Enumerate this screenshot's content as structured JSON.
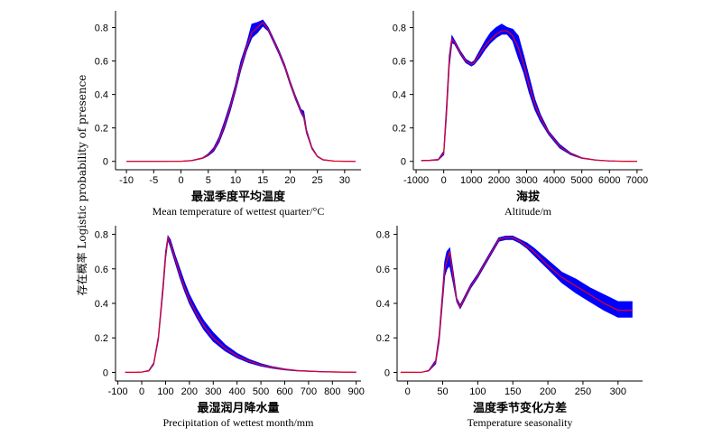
{
  "figure": {
    "ylabel": "存在概率 Logistic probability of presence",
    "colors": {
      "band": "#0000ff",
      "mean": "#e8001c",
      "axis": "#000000"
    }
  },
  "chart_data": [
    {
      "type": "line",
      "xlabel_cn": "最湿季度平均温度",
      "xlabel_en": "Mean temperature of wettest quarter/°C",
      "xlim": [
        -12,
        33
      ],
      "ylim": [
        -0.05,
        0.9
      ],
      "xticks": [
        -10,
        -5,
        0,
        5,
        10,
        15,
        20,
        25,
        30
      ],
      "yticks": [
        0,
        0.2,
        0.4,
        0.6,
        0.8
      ],
      "series": [
        {
          "role": "mean",
          "x": [
            -10,
            -5,
            0,
            2,
            4,
            5,
            6,
            7,
            8,
            9,
            10,
            11,
            12,
            13,
            14,
            15,
            16,
            17,
            18,
            19,
            20,
            21,
            22,
            22.5,
            23,
            24,
            25,
            26,
            28,
            30,
            32
          ],
          "y": [
            0,
            0,
            0.001,
            0.005,
            0.02,
            0.04,
            0.07,
            0.13,
            0.22,
            0.32,
            0.44,
            0.57,
            0.68,
            0.77,
            0.8,
            0.83,
            0.79,
            0.72,
            0.65,
            0.57,
            0.47,
            0.38,
            0.3,
            0.27,
            0.18,
            0.08,
            0.03,
            0.01,
            0.002,
            0.001,
            0
          ]
        },
        {
          "role": "upper",
          "x": [
            -10,
            -5,
            0,
            2,
            4,
            5,
            6,
            7,
            8,
            9,
            10,
            11,
            12,
            13,
            14,
            15,
            16,
            17,
            18,
            19,
            20,
            21,
            22,
            22.5,
            23,
            24,
            25,
            26,
            28,
            30,
            32
          ],
          "y": [
            0,
            0,
            0.001,
            0.006,
            0.022,
            0.045,
            0.08,
            0.145,
            0.24,
            0.34,
            0.46,
            0.6,
            0.7,
            0.82,
            0.83,
            0.845,
            0.8,
            0.73,
            0.66,
            0.58,
            0.48,
            0.39,
            0.31,
            0.3,
            0.19,
            0.085,
            0.032,
            0.011,
            0.002,
            0.001,
            0
          ]
        },
        {
          "role": "lower",
          "x": [
            -10,
            -5,
            0,
            2,
            4,
            5,
            6,
            7,
            8,
            9,
            10,
            11,
            12,
            13,
            14,
            15,
            16,
            17,
            18,
            19,
            20,
            21,
            22,
            22.5,
            23,
            24,
            25,
            26,
            28,
            30,
            32
          ],
          "y": [
            0,
            0,
            0.001,
            0.004,
            0.018,
            0.035,
            0.06,
            0.115,
            0.2,
            0.3,
            0.42,
            0.55,
            0.66,
            0.74,
            0.77,
            0.81,
            0.78,
            0.71,
            0.64,
            0.56,
            0.46,
            0.37,
            0.29,
            0.26,
            0.17,
            0.075,
            0.028,
            0.009,
            0.002,
            0.001,
            0
          ]
        }
      ]
    },
    {
      "type": "line",
      "xlabel_cn": "海拔",
      "xlabel_en": "Altitude/m",
      "xlim": [
        -1100,
        7200
      ],
      "ylim": [
        -0.05,
        0.9
      ],
      "xticks": [
        -1000,
        0,
        1000,
        2000,
        3000,
        4000,
        5000,
        6000,
        7000
      ],
      "yticks": [
        0,
        0.2,
        0.4,
        0.6,
        0.8
      ],
      "series": [
        {
          "role": "mean",
          "x": [
            -800,
            -500,
            -200,
            0,
            100,
            200,
            300,
            400,
            600,
            800,
            1000,
            1100,
            1300,
            1500,
            1700,
            1900,
            2100,
            2300,
            2500,
            2700,
            2900,
            3100,
            3300,
            3500,
            3800,
            4200,
            4600,
            5000,
            5500,
            6000,
            6500,
            7000
          ],
          "y": [
            0.005,
            0.006,
            0.01,
            0.05,
            0.3,
            0.6,
            0.73,
            0.71,
            0.65,
            0.6,
            0.58,
            0.59,
            0.64,
            0.69,
            0.73,
            0.76,
            0.78,
            0.78,
            0.75,
            0.68,
            0.58,
            0.45,
            0.34,
            0.26,
            0.17,
            0.09,
            0.045,
            0.02,
            0.008,
            0.003,
            0.001,
            0.001
          ]
        },
        {
          "role": "upper",
          "x": [
            -800,
            -500,
            -200,
            0,
            100,
            200,
            300,
            400,
            600,
            800,
            1000,
            1100,
            1300,
            1500,
            1700,
            1900,
            2100,
            2300,
            2500,
            2700,
            2900,
            3100,
            3300,
            3500,
            3800,
            4200,
            4600,
            5000,
            5500,
            6000,
            6500,
            7000
          ],
          "y": [
            0.006,
            0.007,
            0.012,
            0.06,
            0.33,
            0.63,
            0.75,
            0.72,
            0.66,
            0.61,
            0.59,
            0.6,
            0.66,
            0.72,
            0.77,
            0.8,
            0.82,
            0.8,
            0.79,
            0.75,
            0.63,
            0.5,
            0.37,
            0.28,
            0.18,
            0.1,
            0.05,
            0.022,
            0.009,
            0.003,
            0.001,
            0.001
          ]
        },
        {
          "role": "lower",
          "x": [
            -800,
            -500,
            -200,
            0,
            100,
            200,
            300,
            400,
            600,
            800,
            1000,
            1100,
            1300,
            1500,
            1700,
            1900,
            2100,
            2300,
            2500,
            2700,
            2900,
            3100,
            3300,
            3500,
            3800,
            4200,
            4600,
            5000,
            5500,
            6000,
            6500,
            7000
          ],
          "y": [
            0.004,
            0.005,
            0.008,
            0.04,
            0.27,
            0.57,
            0.71,
            0.7,
            0.64,
            0.59,
            0.57,
            0.58,
            0.62,
            0.67,
            0.71,
            0.74,
            0.76,
            0.76,
            0.72,
            0.62,
            0.53,
            0.41,
            0.31,
            0.24,
            0.16,
            0.08,
            0.04,
            0.018,
            0.007,
            0.002,
            0.001,
            0.001
          ]
        }
      ]
    },
    {
      "type": "line",
      "xlabel_cn": "最湿润月降水量",
      "xlabel_en": "Precipitation of wettest month/mm",
      "xlim": [
        -110,
        920
      ],
      "ylim": [
        -0.05,
        0.85
      ],
      "xticks": [
        -100,
        0,
        100,
        200,
        300,
        400,
        500,
        600,
        700,
        800,
        900
      ],
      "yticks": [
        0,
        0.2,
        0.4,
        0.6,
        0.8
      ],
      "series": [
        {
          "role": "mean",
          "x": [
            -70,
            -30,
            0,
            30,
            50,
            70,
            90,
            100,
            110,
            120,
            140,
            160,
            180,
            200,
            230,
            260,
            300,
            350,
            400,
            450,
            500,
            550,
            600,
            650,
            700,
            750,
            800,
            850,
            900
          ],
          "y": [
            0,
            0,
            0.002,
            0.01,
            0.05,
            0.2,
            0.5,
            0.68,
            0.78,
            0.75,
            0.66,
            0.57,
            0.49,
            0.42,
            0.34,
            0.27,
            0.2,
            0.14,
            0.095,
            0.065,
            0.043,
            0.028,
            0.018,
            0.011,
            0.007,
            0.004,
            0.003,
            0.002,
            0.001
          ]
        },
        {
          "role": "upper",
          "x": [
            -70,
            -30,
            0,
            30,
            50,
            70,
            90,
            100,
            110,
            120,
            140,
            160,
            180,
            200,
            230,
            260,
            300,
            350,
            400,
            450,
            500,
            550,
            600,
            650,
            700,
            750,
            800,
            850,
            900
          ],
          "y": [
            0,
            0,
            0.002,
            0.012,
            0.055,
            0.21,
            0.52,
            0.7,
            0.79,
            0.77,
            0.68,
            0.6,
            0.52,
            0.45,
            0.37,
            0.3,
            0.23,
            0.16,
            0.11,
            0.075,
            0.05,
            0.032,
            0.02,
            0.012,
            0.008,
            0.005,
            0.003,
            0.002,
            0.001
          ]
        },
        {
          "role": "lower",
          "x": [
            -70,
            -30,
            0,
            30,
            50,
            70,
            90,
            100,
            110,
            120,
            140,
            160,
            180,
            200,
            230,
            260,
            300,
            350,
            400,
            450,
            500,
            550,
            600,
            650,
            700,
            750,
            800,
            850,
            900
          ],
          "y": [
            0,
            0,
            0.002,
            0.008,
            0.045,
            0.19,
            0.48,
            0.66,
            0.77,
            0.73,
            0.64,
            0.55,
            0.47,
            0.4,
            0.32,
            0.25,
            0.18,
            0.125,
            0.085,
            0.056,
            0.037,
            0.024,
            0.015,
            0.009,
            0.006,
            0.004,
            0.002,
            0.001,
            0.001
          ]
        }
      ]
    },
    {
      "type": "line",
      "xlabel_cn": "温度季节变化方差",
      "xlabel_en": "Temperature seasonality",
      "xlim": [
        -15,
        335
      ],
      "ylim": [
        -0.05,
        0.85
      ],
      "xticks": [
        0,
        50,
        100,
        150,
        200,
        250,
        300
      ],
      "yticks": [
        0,
        0.2,
        0.4,
        0.6,
        0.8
      ],
      "series": [
        {
          "role": "mean",
          "x": [
            -10,
            0,
            20,
            30,
            40,
            45,
            50,
            53,
            56,
            60,
            65,
            70,
            75,
            80,
            90,
            100,
            110,
            120,
            130,
            140,
            150,
            160,
            170,
            180,
            200,
            220,
            240,
            260,
            280,
            300,
            320
          ],
          "y": [
            0,
            0,
            0.001,
            0.01,
            0.06,
            0.2,
            0.45,
            0.6,
            0.65,
            0.7,
            0.55,
            0.42,
            0.38,
            0.42,
            0.5,
            0.56,
            0.63,
            0.7,
            0.77,
            0.78,
            0.78,
            0.76,
            0.73,
            0.7,
            0.62,
            0.55,
            0.5,
            0.45,
            0.4,
            0.36,
            0.36
          ]
        },
        {
          "role": "upper",
          "x": [
            -10,
            0,
            20,
            30,
            40,
            45,
            50,
            53,
            56,
            60,
            65,
            70,
            75,
            80,
            90,
            100,
            110,
            120,
            130,
            140,
            150,
            160,
            170,
            180,
            200,
            220,
            240,
            260,
            280,
            300,
            320
          ],
          "y": [
            0,
            0,
            0.001,
            0.012,
            0.07,
            0.22,
            0.48,
            0.64,
            0.7,
            0.72,
            0.58,
            0.43,
            0.39,
            0.43,
            0.51,
            0.57,
            0.64,
            0.71,
            0.78,
            0.79,
            0.79,
            0.77,
            0.75,
            0.72,
            0.65,
            0.58,
            0.54,
            0.49,
            0.45,
            0.41,
            0.41
          ]
        },
        {
          "role": "lower",
          "x": [
            -10,
            0,
            20,
            30,
            40,
            45,
            50,
            53,
            56,
            60,
            65,
            70,
            75,
            80,
            90,
            100,
            110,
            120,
            130,
            140,
            150,
            160,
            170,
            180,
            200,
            220,
            240,
            260,
            280,
            300,
            320
          ],
          "y": [
            0,
            0,
            0.001,
            0.008,
            0.05,
            0.18,
            0.42,
            0.56,
            0.6,
            0.62,
            0.52,
            0.41,
            0.37,
            0.41,
            0.49,
            0.55,
            0.62,
            0.69,
            0.76,
            0.77,
            0.77,
            0.75,
            0.72,
            0.68,
            0.6,
            0.52,
            0.46,
            0.41,
            0.36,
            0.32,
            0.32
          ]
        }
      ]
    }
  ]
}
